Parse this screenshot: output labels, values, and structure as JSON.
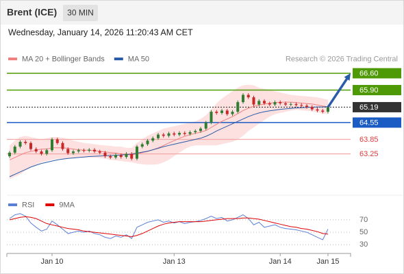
{
  "header": {
    "symbol": "Brent (ICE)",
    "timeframe": "30 MIN",
    "datetime": "Wednesday, January 14, 2026 11:20:43 AM CET"
  },
  "chart_data": [
    {
      "type": "candlestick",
      "source": "Research © 2026 Trading Central",
      "categories": [
        null,
        null,
        null,
        null,
        null,
        null,
        null,
        null,
        "Jan 10",
        null,
        null,
        null,
        null,
        null,
        null,
        null,
        null,
        null,
        null,
        null,
        null,
        null,
        null,
        null,
        null,
        null,
        null,
        null,
        null,
        null,
        null,
        "Jan 13",
        null,
        null,
        null,
        null,
        null,
        null,
        null,
        null,
        null,
        null,
        null,
        null,
        null,
        null,
        null,
        null,
        null,
        null,
        null,
        "Jan 14",
        null,
        null,
        null,
        null,
        null,
        null,
        null,
        null,
        "Jan 15"
      ],
      "open": [
        63.15,
        63.3,
        63.55,
        63.75,
        63.7,
        63.45,
        63.35,
        63.25,
        63.4,
        63.85,
        63.7,
        63.45,
        63.28,
        63.35,
        63.4,
        63.38,
        63.42,
        63.35,
        63.3,
        63.15,
        63.1,
        63.2,
        63.12,
        63.25,
        63.05,
        63.55,
        63.65,
        63.8,
        63.9,
        64.05,
        64.0,
        64.1,
        64.05,
        64.12,
        64.08,
        64.15,
        64.2,
        64.3,
        64.55,
        65.0,
        64.95,
        65.05,
        64.9,
        65.0,
        65.4,
        65.7,
        65.6,
        65.3,
        65.45,
        65.35,
        65.3,
        65.4,
        65.35,
        65.3,
        65.32,
        65.28,
        65.25,
        65.2,
        65.1,
        65.05,
        65.0
      ],
      "high": [
        63.37,
        63.62,
        63.82,
        63.82,
        63.77,
        63.52,
        63.42,
        63.47,
        63.92,
        63.92,
        63.77,
        63.52,
        63.42,
        63.47,
        63.47,
        63.49,
        63.49,
        63.42,
        63.37,
        63.22,
        63.27,
        63.27,
        63.32,
        63.32,
        63.62,
        63.72,
        63.87,
        63.97,
        64.12,
        64.12,
        64.17,
        64.17,
        64.19,
        64.19,
        64.22,
        64.27,
        64.37,
        64.62,
        65.07,
        65.07,
        65.12,
        65.12,
        65.07,
        65.47,
        65.77,
        65.77,
        65.67,
        65.52,
        65.52,
        65.42,
        65.47,
        65.47,
        65.42,
        65.39,
        65.39,
        65.35,
        65.32,
        65.27,
        65.17,
        65.12,
        65.26
      ],
      "low": [
        63.08,
        63.23,
        63.48,
        63.63,
        63.38,
        63.28,
        63.18,
        63.18,
        63.33,
        63.63,
        63.38,
        63.21,
        63.21,
        63.28,
        63.31,
        63.31,
        63.28,
        63.23,
        63.08,
        63.03,
        63.03,
        63.05,
        63.05,
        62.98,
        62.98,
        63.48,
        63.58,
        63.73,
        63.83,
        63.93,
        63.93,
        63.98,
        63.98,
        64.01,
        64.01,
        64.08,
        64.13,
        64.23,
        64.48,
        64.88,
        64.88,
        64.83,
        64.83,
        64.93,
        65.33,
        65.53,
        65.23,
        65.23,
        65.28,
        65.23,
        65.23,
        65.28,
        65.23,
        65.23,
        65.21,
        65.18,
        65.13,
        65.03,
        64.98,
        64.93,
        64.93
      ],
      "close": [
        63.3,
        63.55,
        63.75,
        63.7,
        63.45,
        63.35,
        63.25,
        63.4,
        63.85,
        63.7,
        63.45,
        63.28,
        63.35,
        63.4,
        63.38,
        63.42,
        63.35,
        63.3,
        63.15,
        63.1,
        63.2,
        63.12,
        63.25,
        63.05,
        63.55,
        63.65,
        63.8,
        63.9,
        64.05,
        64.0,
        64.1,
        64.05,
        64.12,
        64.08,
        64.15,
        64.2,
        64.3,
        64.55,
        65.0,
        64.95,
        65.05,
        64.9,
        65.0,
        65.4,
        65.7,
        65.6,
        65.3,
        65.45,
        65.35,
        65.3,
        65.4,
        65.35,
        65.3,
        65.32,
        65.28,
        65.25,
        65.2,
        65.1,
        65.05,
        65.0,
        65.19
      ],
      "up_color": "#2e7d32",
      "down_color": "#c62828",
      "series": [
        {
          "name": "MA 20 + Bollinger Bands",
          "color": "#f08080",
          "band_color": "#fde0e0",
          "values": [
            63.0,
            63.1,
            63.2,
            63.3,
            63.35,
            63.4,
            63.45,
            63.45,
            63.5,
            63.5,
            63.5,
            63.48,
            63.45,
            63.42,
            63.4,
            63.4,
            63.38,
            63.36,
            63.33,
            63.3,
            63.28,
            63.25,
            63.22,
            63.2,
            63.25,
            63.3,
            63.35,
            63.42,
            63.5,
            63.6,
            63.7,
            63.8,
            63.9,
            63.98,
            64.05,
            64.1,
            64.15,
            64.22,
            64.35,
            64.48,
            64.6,
            64.7,
            64.8,
            64.92,
            65.05,
            65.15,
            65.22,
            65.28,
            65.32,
            65.35,
            65.38,
            65.4,
            65.4,
            65.4,
            65.38,
            65.36,
            65.34,
            65.32,
            65.28,
            65.24,
            65.2
          ],
          "upper": [
            63.6,
            63.8,
            63.95,
            64.0,
            63.95,
            63.9,
            63.85,
            63.9,
            63.95,
            63.95,
            63.92,
            63.88,
            63.8,
            63.75,
            63.7,
            63.68,
            63.65,
            63.62,
            63.6,
            63.58,
            63.55,
            63.55,
            63.5,
            63.5,
            63.7,
            63.85,
            64.0,
            64.1,
            64.2,
            64.3,
            64.35,
            64.4,
            64.45,
            64.5,
            64.55,
            64.6,
            64.7,
            64.85,
            65.1,
            65.35,
            65.55,
            65.7,
            65.85,
            66.0,
            66.1,
            66.12,
            66.1,
            66.0,
            65.95,
            65.9,
            65.85,
            65.8,
            65.75,
            65.7,
            65.68,
            65.66,
            65.64,
            65.62,
            65.6,
            65.55,
            65.5
          ],
          "lower": [
            62.2,
            62.3,
            62.4,
            62.55,
            62.7,
            62.8,
            62.9,
            62.95,
            63.0,
            63.05,
            63.05,
            63.05,
            63.08,
            63.1,
            63.1,
            63.1,
            63.1,
            63.08,
            63.05,
            63.0,
            62.98,
            62.95,
            62.92,
            62.9,
            62.85,
            62.82,
            62.8,
            62.8,
            62.82,
            62.9,
            63.0,
            63.15,
            63.3,
            63.45,
            63.55,
            63.6,
            63.6,
            63.6,
            63.6,
            63.6,
            63.65,
            63.7,
            63.75,
            63.85,
            64.0,
            64.2,
            64.35,
            64.5,
            64.65,
            64.8,
            64.9,
            64.95,
            65.0,
            65.05,
            65.08,
            65.06,
            65.04,
            65.02,
            64.98,
            64.93,
            64.9
          ]
        },
        {
          "name": "MA 50",
          "color": "#2a5ca8",
          "values": [
            62.3,
            62.4,
            62.5,
            62.6,
            62.7,
            62.78,
            62.85,
            62.9,
            62.95,
            63.0,
            63.03,
            63.06,
            63.08,
            63.1,
            63.12,
            63.14,
            63.15,
            63.16,
            63.17,
            63.18,
            63.19,
            63.2,
            63.22,
            63.24,
            63.28,
            63.32,
            63.36,
            63.42,
            63.48,
            63.55,
            63.6,
            63.65,
            63.7,
            63.75,
            63.8,
            63.85,
            63.9,
            63.98,
            64.08,
            64.2,
            64.3,
            64.4,
            64.5,
            64.6,
            64.7,
            64.8,
            64.88,
            64.95,
            65.0,
            65.04,
            65.07,
            65.1,
            65.12,
            65.14,
            65.16,
            65.17,
            65.18,
            65.19,
            65.2,
            65.2,
            65.21
          ]
        }
      ],
      "levels": [
        {
          "value": 66.6,
          "label": "66.60",
          "color": "#4e9a06",
          "box": true,
          "dashed": false
        },
        {
          "value": 65.9,
          "label": "65.90",
          "color": "#4e9a06",
          "box": true,
          "dashed": false
        },
        {
          "value": 65.19,
          "label": "65.19",
          "color": "#333333",
          "box": true,
          "dashed": true
        },
        {
          "value": 64.55,
          "label": "64.55",
          "color": "#1a5bc4",
          "box": true,
          "dashed": false
        },
        {
          "value": 63.85,
          "label": "63.85",
          "color": "#e03a3a",
          "box": false,
          "dashed": false
        },
        {
          "value": 63.25,
          "label": "63.25",
          "color": "#e03a3a",
          "box": false,
          "dashed": false
        }
      ],
      "arrow_color": "#2a5ca8",
      "ylim": [
        61.53,
        66.94
      ]
    },
    {
      "type": "line",
      "series": [
        {
          "name": "RSI",
          "color": "#5b7fd8",
          "values": [
            72,
            78,
            80,
            76,
            65,
            58,
            52,
            55,
            68,
            62,
            55,
            48,
            50,
            52,
            50,
            52,
            48,
            46,
            42,
            40,
            44,
            42,
            46,
            40,
            58,
            62,
            66,
            68,
            70,
            66,
            68,
            65,
            67,
            64,
            66,
            67,
            69,
            72,
            76,
            72,
            74,
            68,
            70,
            74,
            78,
            72,
            62,
            66,
            58,
            60,
            62,
            58,
            56,
            55,
            54,
            52,
            50,
            46,
            42,
            38,
            55
          ]
        },
        {
          "name": "9MA",
          "color": "#e00000",
          "values": [
            70,
            72,
            74,
            75,
            74,
            72,
            68,
            64,
            62,
            60,
            58,
            56,
            55,
            54,
            52,
            51,
            50,
            49,
            48,
            47,
            46,
            45,
            44,
            43,
            45,
            48,
            52,
            56,
            60,
            63,
            65,
            66,
            67,
            67,
            67,
            67,
            67,
            68,
            69,
            70,
            71,
            72,
            72,
            72,
            73,
            73,
            72,
            71,
            69,
            67,
            65,
            63,
            61,
            59,
            58,
            56,
            55,
            53,
            51,
            48,
            47
          ]
        }
      ],
      "ylim": [
        16,
        82
      ],
      "yticks": [
        70,
        50,
        30
      ]
    }
  ]
}
